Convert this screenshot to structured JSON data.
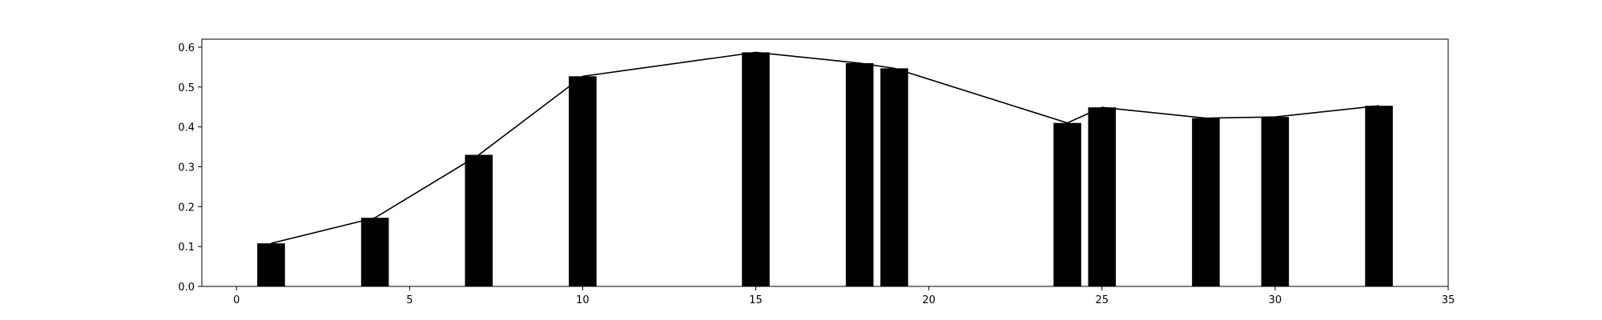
{
  "chart_data": {
    "type": "bar",
    "x": [
      1,
      4,
      7,
      10,
      15,
      18,
      19,
      24,
      25,
      28,
      30,
      33
    ],
    "values": [
      0.108,
      0.172,
      0.33,
      0.527,
      0.587,
      0.56,
      0.547,
      0.41,
      0.449,
      0.422,
      0.425,
      0.453
    ],
    "line_overlay": true,
    "xlim": [
      -1,
      35
    ],
    "ylim": [
      0,
      0.62
    ],
    "x_ticks": [
      0,
      5,
      10,
      15,
      20,
      25,
      30,
      35
    ],
    "y_ticks": [
      0.0,
      0.1,
      0.2,
      0.3,
      0.4,
      0.5,
      0.6
    ],
    "x_tick_labels": [
      "0",
      "5",
      "10",
      "15",
      "20",
      "25",
      "30",
      "35"
    ],
    "y_tick_labels": [
      "0.0",
      "0.1",
      "0.2",
      "0.3",
      "0.4",
      "0.5",
      "0.6"
    ],
    "bar_width": 0.8,
    "bar_color": "#000000",
    "line_color": "#000000",
    "grid": false,
    "title": "",
    "xlabel": "",
    "ylabel": ""
  }
}
